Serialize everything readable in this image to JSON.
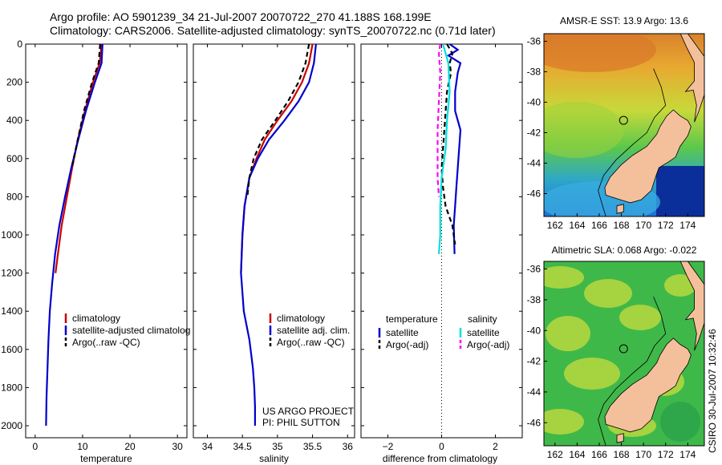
{
  "header": {
    "title_line1": "Argo profile: AO 5901239_34 21-Jul-2007 20070722_270 41.188S 168.199E",
    "title_line2": "Climatology: CARS2006. Satellite-adjusted climatology: synTS_20070722.nc (0.71d later)"
  },
  "stamp": "CSIRO 30-Jul-2007 10:32:46",
  "colors": {
    "climatology": "#cc0000",
    "satellite": "#0000cc",
    "argo": "#000000",
    "satellite_salinity": "#00e0e0",
    "argo_salinity_adj": "#ff00ff",
    "land": "#f4c09c",
    "coast": "#000000"
  },
  "chart_data": [
    {
      "type": "line",
      "panel": "temperature",
      "xlabel": "temperature",
      "ylabel": "",
      "xlim": [
        -2,
        32
      ],
      "ylim": [
        2050,
        0
      ],
      "xticks": [
        0,
        10,
        20,
        30
      ],
      "yticks": [
        0,
        200,
        400,
        600,
        800,
        1000,
        1200,
        1400,
        1600,
        1800,
        2000
      ],
      "legend": [
        "climatology",
        "satellite-adjusted climatolog",
        "Argo(..raw -QC)"
      ],
      "series": [
        {
          "name": "climatology",
          "style": "solid",
          "color": "#cc0000",
          "x": [
            14.0,
            13.6,
            12.2,
            10.5,
            9.0,
            7.8,
            6.7,
            5.6,
            4.8,
            4.3
          ],
          "y": [
            0,
            100,
            200,
            350,
            500,
            650,
            800,
            950,
            1100,
            1200
          ]
        },
        {
          "name": "satellite-adjusted climatolog",
          "style": "solid",
          "color": "#0000cc",
          "x": [
            14.2,
            14.0,
            12.6,
            10.7,
            9.1,
            7.6,
            6.3,
            5.1,
            4.2,
            3.6,
            3.1,
            2.8,
            2.6,
            2.4,
            2.3
          ],
          "y": [
            0,
            100,
            200,
            350,
            500,
            650,
            800,
            950,
            1100,
            1250,
            1400,
            1550,
            1700,
            1850,
            2000
          ]
        },
        {
          "name": "Argo(..raw -QC)",
          "style": "dashed",
          "color": "#000000",
          "x": [
            13.7,
            13.4,
            12.0,
            10.3,
            9.0,
            7.7
          ],
          "y": [
            0,
            100,
            200,
            350,
            500,
            650
          ]
        }
      ]
    },
    {
      "type": "line",
      "panel": "salinity",
      "xlabel": "salinity",
      "ylabel": "",
      "xlim": [
        33.8,
        36.1
      ],
      "ylim": [
        2050,
        0
      ],
      "xticks": [
        34,
        34.5,
        35,
        35.5,
        36
      ],
      "xticklabels": [
        "34",
        "34.5",
        "35",
        "35.5",
        "36"
      ],
      "legend": [
        "climatology",
        "satellite adj. clim.",
        "Argo(..raw -QC)"
      ],
      "series": [
        {
          "name": "climatology",
          "style": "solid",
          "color": "#cc0000",
          "x": [
            35.5,
            35.45,
            35.35,
            35.2,
            35.0,
            34.82,
            34.7,
            34.6,
            34.53,
            34.5,
            34.48
          ],
          "y": [
            0,
            100,
            200,
            300,
            400,
            500,
            600,
            700,
            850,
            1000,
            1200
          ]
        },
        {
          "name": "satellite adj. clim.",
          "style": "solid",
          "color": "#0000cc",
          "x": [
            35.55,
            35.52,
            35.45,
            35.3,
            35.1,
            34.88,
            34.72,
            34.6,
            34.53,
            34.5,
            34.48,
            34.52,
            34.6,
            34.65,
            34.67,
            34.68,
            34.68
          ],
          "y": [
            0,
            100,
            200,
            300,
            400,
            500,
            600,
            700,
            850,
            1000,
            1200,
            1400,
            1550,
            1700,
            1800,
            1900,
            2000
          ]
        },
        {
          "name": "Argo(..raw -QC)",
          "style": "dashed",
          "color": "#000000",
          "x": [
            35.45,
            35.4,
            35.3,
            35.15,
            34.97,
            34.78,
            34.66,
            34.6,
            34.57
          ],
          "y": [
            0,
            100,
            200,
            300,
            400,
            500,
            600,
            700,
            800
          ]
        }
      ],
      "annotation": [
        "US ARGO PROJECT",
        "PI: PHIL SUTTON"
      ]
    },
    {
      "type": "line",
      "panel": "difference",
      "xlabel": "difference from climatology",
      "ylabel": "",
      "xlim": [
        -3,
        3
      ],
      "ylim": [
        2050,
        0
      ],
      "xticks": [
        -2,
        0,
        2
      ],
      "xticklabels": [
        "−2",
        "0",
        "2"
      ],
      "legend_temperature": [
        "temperature",
        "satellite",
        "Argo(-adj)"
      ],
      "legend_salinity": [
        "salinity",
        "satellite",
        "Argo(-adj)"
      ],
      "series": [
        {
          "name": "temperature satellite",
          "style": "solid",
          "color": "#0000cc",
          "x": [
            0.3,
            0.6,
            0.25,
            0.7,
            0.6,
            0.5,
            0.5,
            0.7,
            0.65,
            0.6,
            0.55,
            0.5,
            0.45,
            0.48
          ],
          "y": [
            0,
            30,
            60,
            100,
            150,
            250,
            350,
            450,
            550,
            650,
            750,
            850,
            950,
            1100
          ]
        },
        {
          "name": "temperature Argo(-adj)",
          "style": "dashed",
          "color": "#000000",
          "x": [
            0.2,
            0.4,
            0.3,
            0.35,
            0.2,
            0.15,
            0.1,
            0.05,
            0.0,
            0.05,
            0.15,
            0.4,
            0.5
          ],
          "y": [
            0,
            50,
            100,
            150,
            250,
            350,
            450,
            550,
            650,
            750,
            850,
            950,
            1050
          ]
        },
        {
          "name": "salinity satellite",
          "style": "solid",
          "color": "#00e0e0",
          "x": [
            0.05,
            0.25,
            0.3,
            0.2,
            0.15,
            0.0,
            -0.05,
            -0.05,
            -0.1
          ],
          "y": [
            0,
            100,
            250,
            400,
            550,
            700,
            850,
            1000,
            1100
          ]
        },
        {
          "name": "salinity Argo(-adj)",
          "style": "dashed",
          "color": "#ff00ff",
          "x": [
            -0.05,
            -0.1,
            -0.05,
            -0.1,
            -0.15,
            -0.15,
            -0.15,
            -0.1
          ],
          "y": [
            0,
            50,
            150,
            300,
            450,
            600,
            700,
            800
          ]
        }
      ]
    },
    {
      "type": "heatmap",
      "panel": "sst-map",
      "title": "AMSR-E SST: 13.9 Argo: 13.6",
      "xlim": [
        161,
        175.5
      ],
      "ylim": [
        -47.5,
        -35.5
      ],
      "xticks": [
        162,
        164,
        166,
        168,
        170,
        172,
        174
      ],
      "yticks": [
        -36,
        -38,
        -40,
        -42,
        -44,
        -46
      ],
      "marker": {
        "lon": 168.199,
        "lat": -41.188
      }
    },
    {
      "type": "heatmap",
      "panel": "sla-map",
      "title": "Altimetric SLA: 0.068 Argo: -0.022",
      "xlim": [
        161,
        175.5
      ],
      "ylim": [
        -47.5,
        -35.5
      ],
      "xticks": [
        162,
        164,
        166,
        168,
        170,
        172,
        174
      ],
      "yticks": [
        -36,
        -38,
        -40,
        -42,
        -44,
        -46
      ],
      "marker": {
        "lon": 168.199,
        "lat": -41.188
      }
    }
  ]
}
